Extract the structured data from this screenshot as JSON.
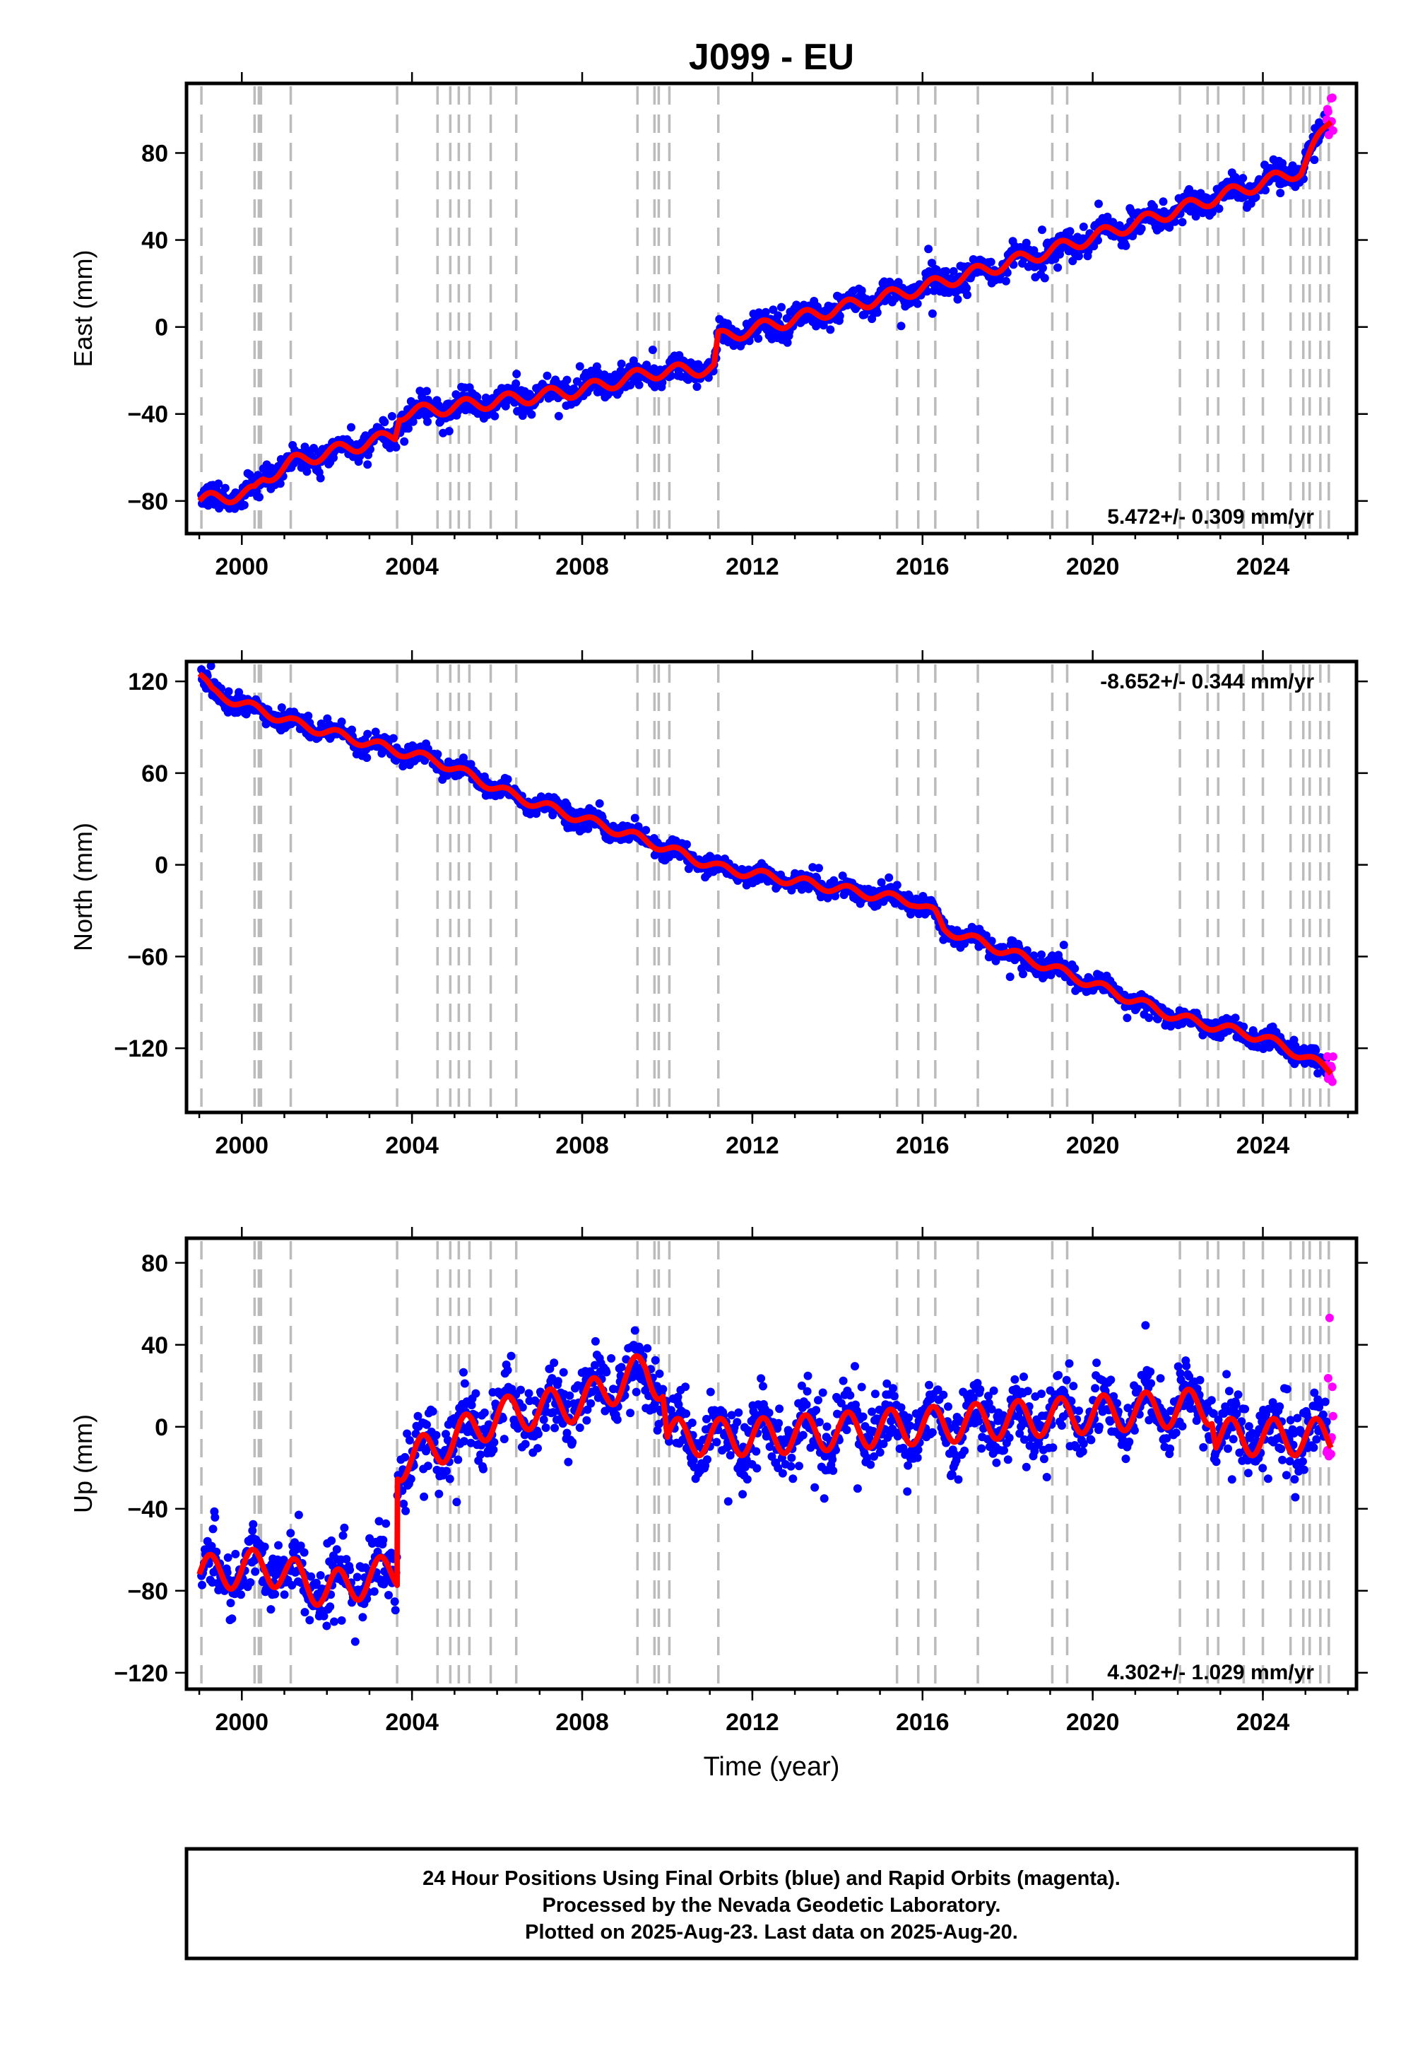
{
  "chart_data": {
    "title": "J099 - EU",
    "xlabel": "Time (year)",
    "xlim": [
      1998.7,
      2026.2
    ],
    "x_ticks": [
      2000,
      2004,
      2008,
      2012,
      2016,
      2020,
      2024
    ],
    "event_lines_year": [
      1999.05,
      2000.3,
      2000.4,
      2000.45,
      2001.15,
      2003.65,
      2004.6,
      2004.9,
      2005.1,
      2005.35,
      2005.85,
      2006.45,
      2009.3,
      2009.7,
      2009.8,
      2010.05,
      2011.2,
      2015.4,
      2015.9,
      2016.3,
      2017.3,
      2019.05,
      2019.4,
      2022.05,
      2022.7,
      2022.95,
      2023.55,
      2024.0,
      2024.65,
      2024.95,
      2025.1,
      2025.35,
      2025.55
    ],
    "final_orbits_color": "#0000ff",
    "rapid_orbits_color": "#ff00ff",
    "model_color": "#ff0000",
    "event_line_color": "#bbbbbb",
    "panels": [
      {
        "component": "east",
        "type": "scatter",
        "ylabel": "East (mm)",
        "ylim": [
          -95,
          112
        ],
        "y_ticks": [
          -80,
          -40,
          0,
          40,
          80
        ],
        "rate_text": "5.472+/- 0.309 mm/yr",
        "rate_position": "bottom-right",
        "model_x": [
          1999.0,
          2000.3,
          2000.5,
          2001.2,
          2003.6,
          2003.7,
          2008.0,
          2009.6,
          2011.1,
          2011.2,
          2016.0,
          2019.0,
          2024.9,
          2025.6
        ],
        "model_y": [
          -80,
          -76,
          -70,
          -62,
          -50,
          -40,
          -29,
          -21,
          -19,
          -5,
          18,
          35,
          72,
          96
        ],
        "noise_sd": 3,
        "seasonal_amplitude": 3,
        "rapid_x": [
          2025.5,
          2025.65
        ],
        "rapid_y": [
          88,
          106
        ]
      },
      {
        "component": "north",
        "type": "scatter",
        "ylabel": "North (mm)",
        "ylim": [
          -162,
          133
        ],
        "y_ticks": [
          -120,
          -60,
          0,
          60,
          120
        ],
        "rate_text": "-8.652+/- 0.344 mm/yr",
        "rate_position": "top-right",
        "model_x": [
          1999.0,
          1999.3,
          2001.2,
          2003.6,
          2004.6,
          2006.4,
          2009.3,
          2011.2,
          2012.5,
          2014.5,
          2015.8,
          2016.3,
          2016.5,
          2019.0,
          2022.0,
          2024.0,
          2024.95,
          2025.6
        ],
        "model_y": [
          125,
          113,
          93,
          75,
          68,
          45,
          18,
          -2,
          -8,
          -18,
          -24,
          -32,
          -42,
          -67,
          -100,
          -113,
          -125,
          -135
        ],
        "noise_sd": 3,
        "seasonal_amplitude": 3,
        "rapid_x": [
          2025.5,
          2025.65
        ],
        "rapid_y": [
          -142,
          -125
        ]
      },
      {
        "component": "up",
        "type": "scatter",
        "ylabel": "Up (mm)",
        "ylim": [
          -128,
          92
        ],
        "y_ticks": [
          -120,
          -80,
          -40,
          0,
          40,
          80
        ],
        "rate_text": "4.302+/- 1.029 mm/yr",
        "rate_position": "bottom-right",
        "model_x": [
          1999.0,
          2000.6,
          2002.0,
          2003.65,
          2003.66,
          2004.6,
          2006.0,
          2008.0,
          2009.5,
          2009.9,
          2010.0,
          2012.0,
          2022.8,
          2022.9,
          2025.6
        ],
        "model_y": [
          -72,
          -68,
          -80,
          -70,
          -18,
          -10,
          5,
          12,
          28,
          20,
          -5,
          -5,
          10,
          -5,
          -5
        ],
        "noise_sd": 8,
        "seasonal_amplitude": 9,
        "rapid_x": [
          2025.5,
          2025.65
        ],
        "rapid_y": [
          -15,
          58
        ]
      }
    ]
  },
  "footer": {
    "line1": "24 Hour Positions Using Final Orbits (blue) and Rapid Orbits (magenta).",
    "line2": "Processed by the Nevada Geodetic Laboratory.",
    "line3": "Plotted on 2025-Aug-23. Last data on 2025-Aug-20."
  }
}
